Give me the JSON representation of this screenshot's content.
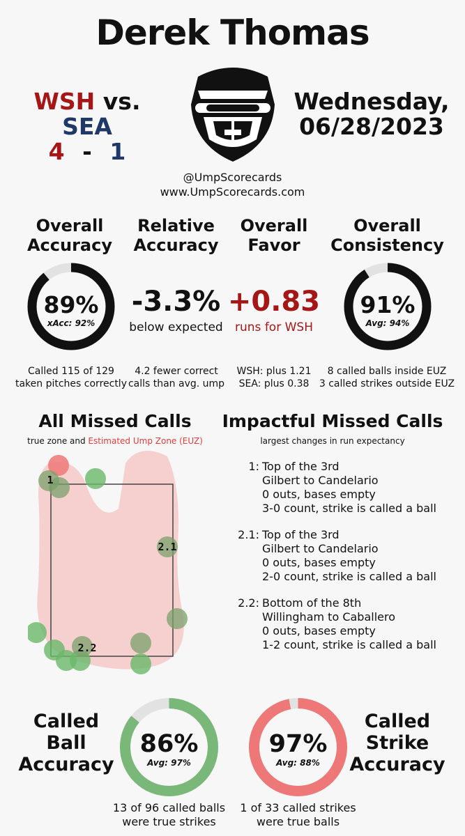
{
  "title": "Derek Thomas",
  "teams": {
    "away": "WSH",
    "vs": "vs.",
    "home": "SEA",
    "away_score": "4",
    "dash": "-",
    "home_score": "1"
  },
  "date": {
    "day": "Wednesday,",
    "date": "06/28/2023"
  },
  "credits": {
    "handle": "@UmpScorecards",
    "site": "www.UmpScorecards.com"
  },
  "metrics": {
    "accuracy": {
      "h1": "Overall",
      "h2": "Accuracy",
      "value": "89%",
      "sub": "xAcc: 92%",
      "fraction": 0.89,
      "note1": "Called 115 of 129",
      "note2": "taken pitches correctly"
    },
    "relative": {
      "h1": "Relative",
      "h2": "Accuracy",
      "value": "-3.3%",
      "sub": "below expected",
      "note1": "4.2 fewer correct",
      "note2": "calls than avg. ump"
    },
    "favor": {
      "h1": "Overall",
      "h2": "Favor",
      "value": "+0.83",
      "sub": "runs for WSH",
      "note1": "WSH: plus 1.21",
      "note2": "SEA: plus 0.38"
    },
    "consistency": {
      "h1": "Overall",
      "h2": "Consistency",
      "value": "91%",
      "sub": "Avg: 94%",
      "fraction": 0.91,
      "note1": "8 called balls inside EUZ",
      "note2": "3 called strikes outside EUZ"
    }
  },
  "missed": {
    "title": "All Missed Calls",
    "legend_prefix": "true zone and",
    "legend_euz": "Estimated Ump Zone (EUZ)",
    "point_labels": [
      "1",
      "2.1",
      "2.2"
    ]
  },
  "impactful": {
    "title": "Impactful Missed Calls",
    "subtitle": "largest changes in run expectancy",
    "items": [
      {
        "label": "1:",
        "l1": "Top of the 3rd",
        "l2": "Gilbert to Candelario",
        "l3": "0 outs, bases empty",
        "l4": "3-0 count, strike is called a ball"
      },
      {
        "label": "2.1:",
        "l1": "Top of the 3rd",
        "l2": "Gilbert to Candelario",
        "l3": "0 outs, bases empty",
        "l4": "2-0 count, strike is called a ball"
      },
      {
        "label": "2.2:",
        "l1": "Bottom of the 8th",
        "l2": "Willingham to Caballero",
        "l3": "0 outs, bases empty",
        "l4": "1-2 count, strike is called a ball"
      }
    ]
  },
  "ball_accuracy": {
    "h1": "Called",
    "h2": "Ball",
    "h3": "Accuracy",
    "value": "86%",
    "sub": "Avg: 97%",
    "fraction": 0.86,
    "note1": "13 of 96 called balls",
    "note2": "were true strikes"
  },
  "strike_accuracy": {
    "h1": "Called",
    "h2": "Strike",
    "h3": "Accuracy",
    "value": "97%",
    "sub": "Avg: 88%",
    "fraction": 0.97,
    "note1": "1 of 33 called strikes",
    "note2": "were true balls"
  },
  "colors": {
    "red": "#a51717",
    "navy": "#1f3868",
    "green": "#7ab87a",
    "pink": "#ee7878",
    "euz": "#f6cfcf"
  }
}
